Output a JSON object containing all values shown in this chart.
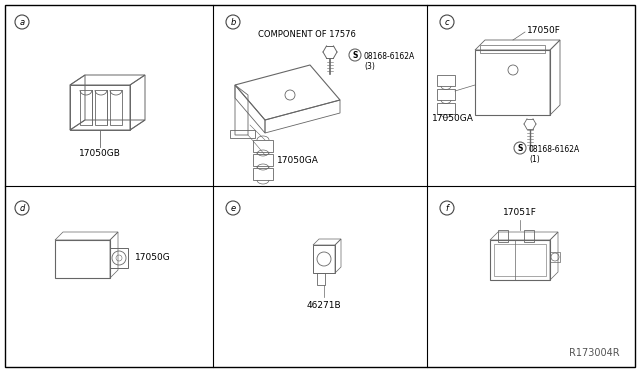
{
  "bg_color": "#ffffff",
  "line_color": "#666666",
  "text_color": "#000000",
  "panel_labels": [
    "a",
    "b",
    "c",
    "d",
    "e",
    "f"
  ],
  "part_labels": {
    "a": "17050GB",
    "b_comp": "COMPONENT OF 17576",
    "b_screw": "08168-6162A\n(3)",
    "b_part": "17050GA",
    "c_top": "17050F",
    "c_mid": "17050GA",
    "c_screw": "08168-6162A\n(1)",
    "d": "17050G",
    "e": "46271B",
    "f": "17051F"
  },
  "watermark": "R173004R"
}
